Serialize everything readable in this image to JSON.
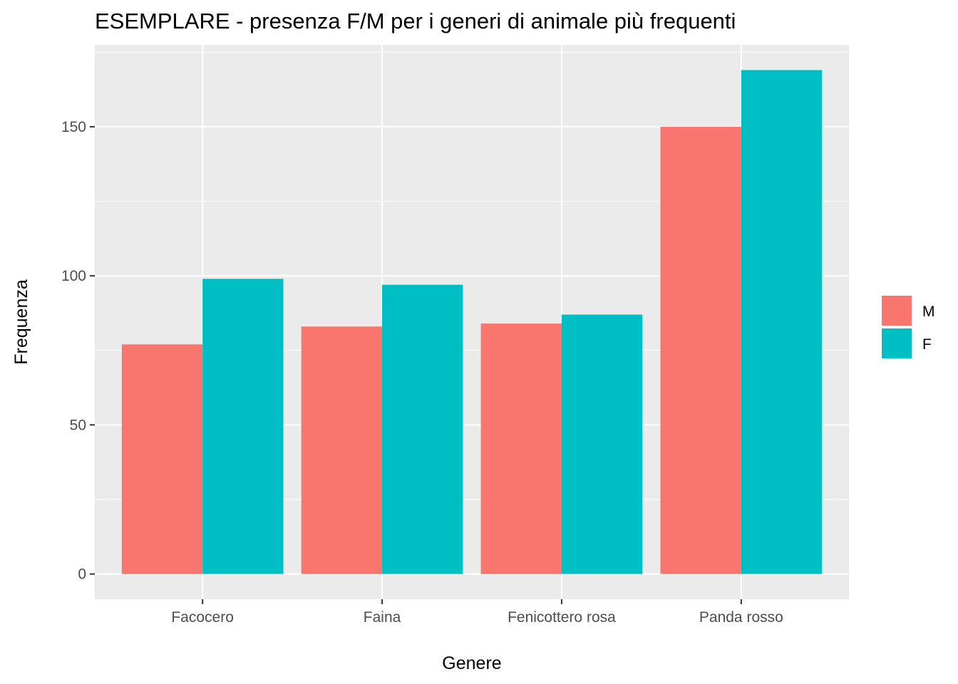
{
  "chart_data": {
    "type": "bar",
    "title": "ESEMPLARE - presenza F/M per i generi di animale più frequenti",
    "xlabel": "Genere",
    "ylabel": "Frequenza",
    "categories": [
      "Facocero",
      "Faina",
      "Fenicottero rosa",
      "Panda rosso"
    ],
    "series": [
      {
        "name": "M",
        "color": "#F8766D",
        "values": [
          77,
          83,
          84,
          150
        ]
      },
      {
        "name": "F",
        "color": "#00BFC4",
        "values": [
          99,
          97,
          87,
          169
        ]
      }
    ],
    "yticks": [
      0,
      50,
      100,
      150
    ],
    "ylim": [
      -8.45,
      177.45
    ],
    "grid": true,
    "legend_position": "right",
    "panel_color": "#EBEBEB",
    "grid_color": "#FFFFFF"
  }
}
